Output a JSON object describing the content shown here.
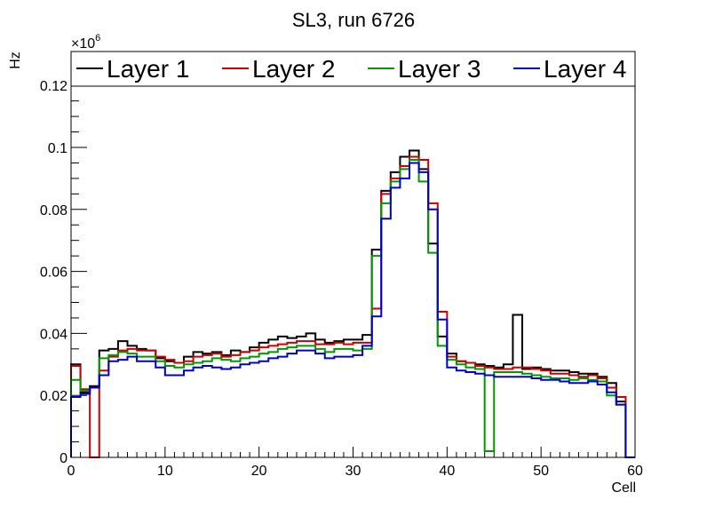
{
  "chart_data": {
    "type": "histogram-step",
    "title": "SL3, run 6726",
    "xlabel": "Cell",
    "ylabel": "Hz",
    "exponent_label": "×10",
    "exponent_power": "6",
    "xlim": [
      0,
      60
    ],
    "ylim": [
      0,
      0.132
    ],
    "bin_edges_start": 0,
    "bin_width": 1,
    "x_ticks": [
      0,
      10,
      20,
      30,
      40,
      50,
      60
    ],
    "x_tick_labels": [
      "0",
      "10",
      "20",
      "30",
      "40",
      "50",
      "60"
    ],
    "y_ticks": [
      0,
      0.02,
      0.04,
      0.06,
      0.08,
      0.1,
      0.12
    ],
    "y_tick_labels": [
      "0",
      "0.02",
      "0.04",
      "0.06",
      "0.08",
      "0.1",
      "0.12"
    ],
    "legend_position": "top",
    "series": [
      {
        "name": "Layer 1",
        "color": "#000000",
        "values": [
          0.03,
          0.021,
          0.023,
          0.0345,
          0.035,
          0.0375,
          0.036,
          0.035,
          0.0345,
          0.032,
          0.031,
          0.0305,
          0.0325,
          0.034,
          0.0335,
          0.034,
          0.033,
          0.0345,
          0.034,
          0.0355,
          0.037,
          0.038,
          0.039,
          0.0385,
          0.039,
          0.04,
          0.038,
          0.037,
          0.0375,
          0.038,
          0.038,
          0.0395,
          0.067,
          0.086,
          0.092,
          0.097,
          0.099,
          0.093,
          0.069,
          0.039,
          0.0335,
          0.031,
          0.0305,
          0.03,
          0.0295,
          0.029,
          0.03,
          0.046,
          0.0285,
          0.029,
          0.0285,
          0.028,
          0.028,
          0.0275,
          0.027,
          0.027,
          0.026,
          0.024,
          0.018,
          0
        ]
      },
      {
        "name": "Layer 2",
        "color": "#cc0000",
        "values": [
          0.0295,
          0.022,
          0,
          0.028,
          0.0325,
          0.0345,
          0.035,
          0.0345,
          0.0345,
          0.0325,
          0.0315,
          0.0305,
          0.031,
          0.0325,
          0.033,
          0.0335,
          0.0325,
          0.033,
          0.034,
          0.0345,
          0.0355,
          0.036,
          0.0365,
          0.037,
          0.0375,
          0.0375,
          0.0365,
          0.0365,
          0.037,
          0.0365,
          0.037,
          0.037,
          0.048,
          0.085,
          0.09,
          0.094,
          0.097,
          0.096,
          0.082,
          0.047,
          0.0325,
          0.031,
          0.0305,
          0.0295,
          0.029,
          0.0285,
          0.0285,
          0.029,
          0.029,
          0.0285,
          0.028,
          0.027,
          0.027,
          0.0265,
          0.026,
          0.0265,
          0.0255,
          0.0225,
          0.0195,
          0
        ]
      },
      {
        "name": "Layer 3",
        "color": "#009900",
        "values": [
          0.025,
          0.0215,
          0.0225,
          0.032,
          0.033,
          0.034,
          0.0335,
          0.0325,
          0.0325,
          0.031,
          0.0295,
          0.029,
          0.03,
          0.0305,
          0.031,
          0.032,
          0.0315,
          0.031,
          0.032,
          0.0325,
          0.0335,
          0.034,
          0.035,
          0.0355,
          0.036,
          0.036,
          0.035,
          0.034,
          0.035,
          0.035,
          0.0345,
          0.035,
          0.065,
          0.082,
          0.089,
          0.093,
          0.096,
          0.089,
          0.066,
          0.036,
          0.0315,
          0.03,
          0.029,
          0.0285,
          0.002,
          0.0275,
          0.0275,
          0.0275,
          0.027,
          0.0265,
          0.026,
          0.0255,
          0.0255,
          0.025,
          0.0255,
          0.025,
          0.0245,
          0.02,
          0.017,
          0
        ]
      },
      {
        "name": "Layer 4",
        "color": "#0000cc",
        "values": [
          0.0195,
          0.0205,
          0.0225,
          0.0265,
          0.031,
          0.0315,
          0.0325,
          0.031,
          0.031,
          0.029,
          0.0265,
          0.0265,
          0.028,
          0.029,
          0.0295,
          0.029,
          0.0285,
          0.029,
          0.03,
          0.0305,
          0.031,
          0.032,
          0.0325,
          0.0335,
          0.0345,
          0.0345,
          0.0335,
          0.032,
          0.0325,
          0.0325,
          0.033,
          0.036,
          0.0455,
          0.077,
          0.087,
          0.09,
          0.095,
          0.092,
          0.08,
          0.0445,
          0.029,
          0.028,
          0.0275,
          0.027,
          0.0265,
          0.026,
          0.026,
          0.026,
          0.026,
          0.0255,
          0.025,
          0.025,
          0.0245,
          0.024,
          0.024,
          0.0245,
          0.0235,
          0.021,
          0.017,
          0
        ]
      }
    ]
  }
}
